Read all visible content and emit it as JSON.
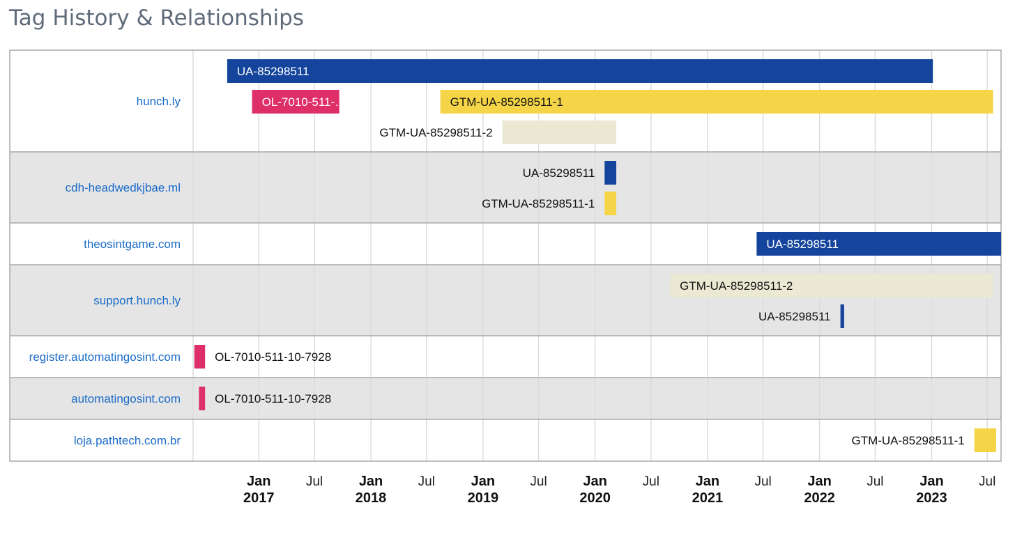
{
  "page": {
    "title": "Tag History & Relationships"
  },
  "colors": {
    "UA": "#14449c",
    "GTM1": "#f5d547",
    "GTM2": "#ebe9d4",
    "OL": "#df2f69",
    "row_alt": "#e5e5e5",
    "row_label": "#1a6bc9"
  },
  "chart_data": {
    "type": "timeline",
    "title": "Tag History & Relationships",
    "x_range": [
      "2016-06-01",
      "2023-08-15"
    ],
    "x_ticks": [
      {
        "date": "2017-01-01",
        "month": "Jan",
        "year": "2017"
      },
      {
        "date": "2017-07-01",
        "month": "Jul",
        "year": ""
      },
      {
        "date": "2018-01-01",
        "month": "Jan",
        "year": "2018"
      },
      {
        "date": "2018-07-01",
        "month": "Jul",
        "year": ""
      },
      {
        "date": "2019-01-01",
        "month": "Jan",
        "year": "2019"
      },
      {
        "date": "2019-07-01",
        "month": "Jul",
        "year": ""
      },
      {
        "date": "2020-01-01",
        "month": "Jan",
        "year": "2020"
      },
      {
        "date": "2020-07-01",
        "month": "Jul",
        "year": ""
      },
      {
        "date": "2021-01-01",
        "month": "Jan",
        "year": "2021"
      },
      {
        "date": "2021-07-01",
        "month": "Jul",
        "year": ""
      },
      {
        "date": "2022-01-01",
        "month": "Jan",
        "year": "2022"
      },
      {
        "date": "2022-07-01",
        "month": "Jul",
        "year": ""
      },
      {
        "date": "2023-01-01",
        "month": "Jan",
        "year": "2023"
      },
      {
        "date": "2023-07-01",
        "month": "Jul",
        "year": ""
      }
    ],
    "rows": [
      {
        "label": "hunch.ly",
        "bars": [
          {
            "tag": "UA-85298511",
            "kind": "UA",
            "start": "2016-09-20",
            "end": "2023-01-05",
            "text": "UA-85298511",
            "text_pos": "inside"
          },
          {
            "tag": "OL-7010-511-10-7928",
            "kind": "OL",
            "start": "2016-12-10",
            "end": "2017-09-20",
            "text": "OL-7010-511-…",
            "text_pos": "inside"
          },
          {
            "tag": "GTM-UA-85298511-1",
            "kind": "GTM1",
            "start": "2018-08-15",
            "end": "2023-07-20",
            "text": "GTM-UA-85298511-1",
            "text_pos": "inside"
          },
          {
            "tag": "GTM-UA-85298511-2",
            "kind": "GTM2",
            "start": "2019-03-05",
            "end": "2020-03-10",
            "text": "GTM-UA-85298511-2",
            "text_pos": "left"
          }
        ]
      },
      {
        "label": "cdh-headwedkjbae.ml",
        "bars": [
          {
            "tag": "UA-85298511",
            "kind": "UA",
            "start": "2020-02-01",
            "end": "2020-03-10",
            "text": "UA-85298511",
            "text_pos": "left"
          },
          {
            "tag": "GTM-UA-85298511-1",
            "kind": "GTM1",
            "start": "2020-02-01",
            "end": "2020-03-10",
            "text": "GTM-UA-85298511-1",
            "text_pos": "left"
          }
        ]
      },
      {
        "label": "theosintgame.com",
        "bars": [
          {
            "tag": "UA-85298511",
            "kind": "UA",
            "start": "2021-06-10",
            "end": "2023-08-15",
            "text": "UA-85298511",
            "text_pos": "inside"
          }
        ]
      },
      {
        "label": "support.hunch.ly",
        "bars": [
          {
            "tag": "GTM-UA-85298511-2",
            "kind": "GTM2",
            "start": "2020-09-01",
            "end": "2023-07-20",
            "text": "GTM-UA-85298511-2",
            "text_pos": "inside"
          },
          {
            "tag": "UA-85298511",
            "kind": "UA",
            "start": "2022-03-10",
            "end": "2022-03-22",
            "text": "UA-85298511",
            "text_pos": "left"
          }
        ]
      },
      {
        "label": "register.automatingosint.com",
        "bars": [
          {
            "tag": "OL-7010-511-10-7928",
            "kind": "OL",
            "start": "2016-06-05",
            "end": "2016-07-10",
            "text": "OL-7010-511-10-7928",
            "text_pos": "right"
          }
        ]
      },
      {
        "label": "automatingosint.com",
        "bars": [
          {
            "tag": "OL-7010-511-10-7928",
            "kind": "OL",
            "start": "2016-06-20",
            "end": "2016-07-10",
            "text": "OL-7010-511-10-7928",
            "text_pos": "right"
          }
        ]
      },
      {
        "label": "loja.pathtech.com.br",
        "bars": [
          {
            "tag": "GTM-UA-85298511-1",
            "kind": "GTM1",
            "start": "2023-05-20",
            "end": "2023-07-30",
            "text": "GTM-UA-85298511-1",
            "text_pos": "left"
          }
        ]
      }
    ]
  }
}
